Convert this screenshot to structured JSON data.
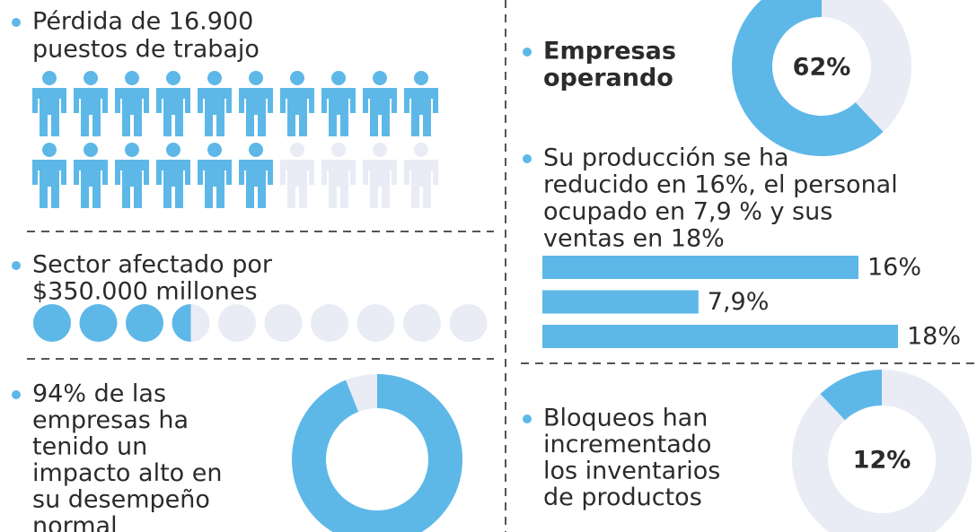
{
  "jobs": {
    "text_lines": [
      "Pérdida de 16.900",
      "puestos de trabajo"
    ],
    "filled": 16,
    "total": 20,
    "color": "#5db8e8",
    "empty_color": "#e9ebf5"
  },
  "sector": {
    "text_lines": [
      "Sector afectado por",
      "$350.000 millones"
    ],
    "filled": 3.5,
    "total": 10,
    "color": "#5db8e8",
    "empty_color": "#e9ebf5"
  },
  "impact": {
    "text_lines": [
      "94% de las",
      "empresas ha",
      "tenido un",
      "impacto alto en",
      "su desempeño",
      "normal"
    ],
    "value": 94,
    "direction": "cw",
    "color": "#5db8e8",
    "empty_color": "#e9ebf5"
  },
  "operating": {
    "text_lines": [
      "Empresas",
      "operando"
    ],
    "value": 62,
    "value_label": "62%",
    "direction": "ccw",
    "color": "#5db8e8",
    "empty_color": "#e9ebf5"
  },
  "production": {
    "text_lines": [
      "Su producción se ha",
      "reducido en 16%, el personal",
      "ocupado en 7,9 % y sus",
      "ventas en 18%"
    ],
    "values": [
      16,
      7.9,
      18
    ],
    "value_labels": [
      "16%",
      "7,9%",
      "18%"
    ],
    "xlim": [
      0,
      20
    ],
    "color": "#5db8e8"
  },
  "blockades": {
    "text_lines": [
      "Bloqueos han",
      "incrementado",
      "los inventarios",
      "de productos"
    ],
    "value": 12,
    "value_label": "12%",
    "direction": "ccw",
    "color": "#5db8e8",
    "empty_color": "#e9ebf5"
  }
}
